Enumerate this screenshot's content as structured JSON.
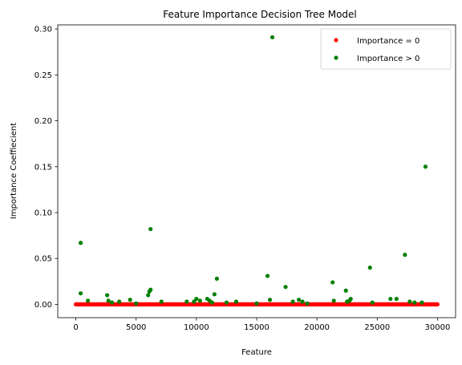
{
  "chart_data": {
    "type": "scatter",
    "title": "Feature Importance Decision Tree Model",
    "xlabel": "Feature",
    "ylabel": "Importance Coeffiecient",
    "xlim": [
      -1500,
      31500
    ],
    "ylim": [
      -0.0145,
      0.3045
    ],
    "xticks": [
      0,
      5000,
      10000,
      15000,
      20000,
      25000,
      30000
    ],
    "xtick_labels": [
      "0",
      "5000",
      "10000",
      "15000",
      "20000",
      "25000",
      "30000"
    ],
    "yticks": [
      0.0,
      0.05,
      0.1,
      0.15,
      0.2,
      0.25,
      0.3
    ],
    "ytick_labels": [
      "0.00",
      "0.05",
      "0.10",
      "0.15",
      "0.20",
      "0.25",
      "0.30"
    ],
    "grid": false,
    "legend_position": "top-right",
    "series": [
      {
        "name": "Importance = 0",
        "color": "#ff0000",
        "x_range": [
          0,
          30000
        ],
        "y_value": 0.0,
        "note": "dense band of points at every feature index",
        "points": []
      },
      {
        "name": "Importance > 0",
        "color": "#008000",
        "points": [
          [
            400,
            0.067
          ],
          [
            400,
            0.012
          ],
          [
            1000,
            0.004
          ],
          [
            2600,
            0.01
          ],
          [
            2700,
            0.004
          ],
          [
            3000,
            0.002
          ],
          [
            3600,
            0.003
          ],
          [
            4500,
            0.005
          ],
          [
            5000,
            0.001
          ],
          [
            6000,
            0.01
          ],
          [
            6100,
            0.014
          ],
          [
            6200,
            0.016
          ],
          [
            6200,
            0.082
          ],
          [
            7100,
            0.003
          ],
          [
            9200,
            0.003
          ],
          [
            9800,
            0.003
          ],
          [
            10000,
            0.006
          ],
          [
            10300,
            0.004
          ],
          [
            10900,
            0.006
          ],
          [
            11100,
            0.004
          ],
          [
            11300,
            0.002
          ],
          [
            11500,
            0.011
          ],
          [
            11700,
            0.028
          ],
          [
            12500,
            0.002
          ],
          [
            13300,
            0.003
          ],
          [
            15000,
            0.001
          ],
          [
            15900,
            0.031
          ],
          [
            16100,
            0.005
          ],
          [
            16300,
            0.291
          ],
          [
            17400,
            0.019
          ],
          [
            18000,
            0.003
          ],
          [
            18500,
            0.005
          ],
          [
            18800,
            0.003
          ],
          [
            19200,
            0.001
          ],
          [
            21300,
            0.024
          ],
          [
            21400,
            0.004
          ],
          [
            22400,
            0.015
          ],
          [
            22500,
            0.003
          ],
          [
            22700,
            0.004
          ],
          [
            22800,
            0.006
          ],
          [
            24400,
            0.04
          ],
          [
            24600,
            0.002
          ],
          [
            26100,
            0.006
          ],
          [
            26600,
            0.006
          ],
          [
            27300,
            0.054
          ],
          [
            27700,
            0.003
          ],
          [
            28100,
            0.002
          ],
          [
            28700,
            0.002
          ],
          [
            29000,
            0.15
          ]
        ]
      }
    ]
  }
}
